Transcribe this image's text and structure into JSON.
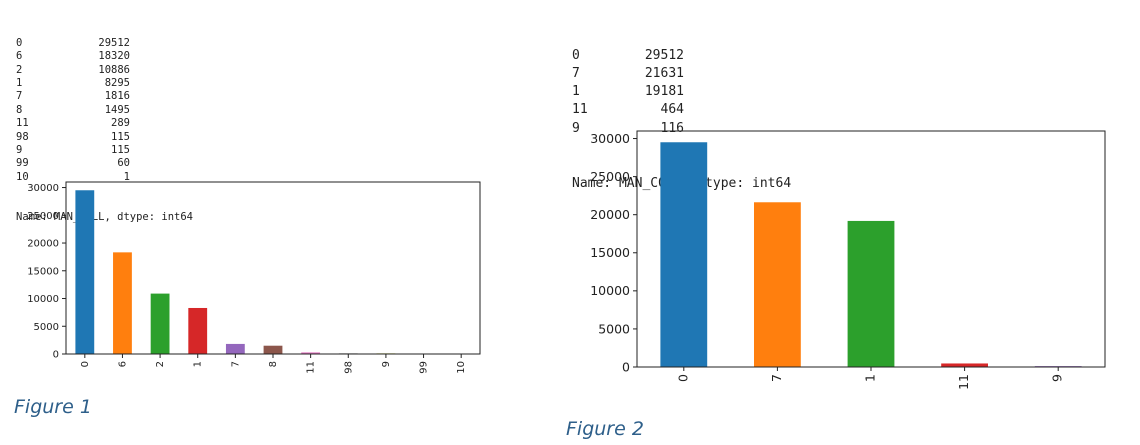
{
  "figures": [
    {
      "caption": "Figure 1",
      "counts_text": [
        {
          "key": "0",
          "value": "29512"
        },
        {
          "key": "6",
          "value": "18320"
        },
        {
          "key": "2",
          "value": "10886"
        },
        {
          "key": "1",
          "value": "8295"
        },
        {
          "key": "7",
          "value": "1816"
        },
        {
          "key": "8",
          "value": "1495"
        },
        {
          "key": "11",
          "value": "289"
        },
        {
          "key": "98",
          "value": "115"
        },
        {
          "key": "9",
          "value": "115"
        },
        {
          "key": "99",
          "value": "60"
        },
        {
          "key": "10",
          "value": "1"
        }
      ],
      "name_line": "Name: MAN_COLL, dtype: int64"
    },
    {
      "caption": "Figure 2",
      "counts_text": [
        {
          "key": "0",
          "value": "29512"
        },
        {
          "key": "7",
          "value": "21631"
        },
        {
          "key": "1",
          "value": "19181"
        },
        {
          "key": "11",
          "value": "464"
        },
        {
          "key": "9",
          "value": "116"
        }
      ],
      "name_line": "Name: MAN_COLL, dtype: int64"
    }
  ],
  "chart_data": [
    {
      "type": "bar",
      "title": "",
      "xlabel": "",
      "ylabel": "",
      "categories": [
        "0",
        "6",
        "2",
        "1",
        "7",
        "8",
        "11",
        "98",
        "9",
        "99",
        "10"
      ],
      "values": [
        29512,
        18320,
        10886,
        8295,
        1816,
        1495,
        289,
        115,
        115,
        60,
        1
      ],
      "ylim": [
        0,
        31000
      ],
      "yticks": [
        0,
        5000,
        10000,
        15000,
        20000,
        25000,
        30000
      ],
      "grid": false,
      "colors": [
        "#1f77b4",
        "#ff7f0e",
        "#2ca02c",
        "#d62728",
        "#9467bd",
        "#8c564b",
        "#e377c2",
        "#7f7f7f",
        "#bcbd22",
        "#17becf",
        "#1f77b4"
      ]
    },
    {
      "type": "bar",
      "title": "",
      "xlabel": "",
      "ylabel": "",
      "categories": [
        "0",
        "7",
        "1",
        "11",
        "9"
      ],
      "values": [
        29512,
        21631,
        19181,
        464,
        116
      ],
      "ylim": [
        0,
        30990
      ],
      "yticks": [
        0,
        5000,
        10000,
        15000,
        20000,
        25000,
        30000
      ],
      "grid": false,
      "colors": [
        "#1f77b4",
        "#ff7f0e",
        "#2ca02c",
        "#d62728",
        "#9467bd"
      ]
    }
  ]
}
